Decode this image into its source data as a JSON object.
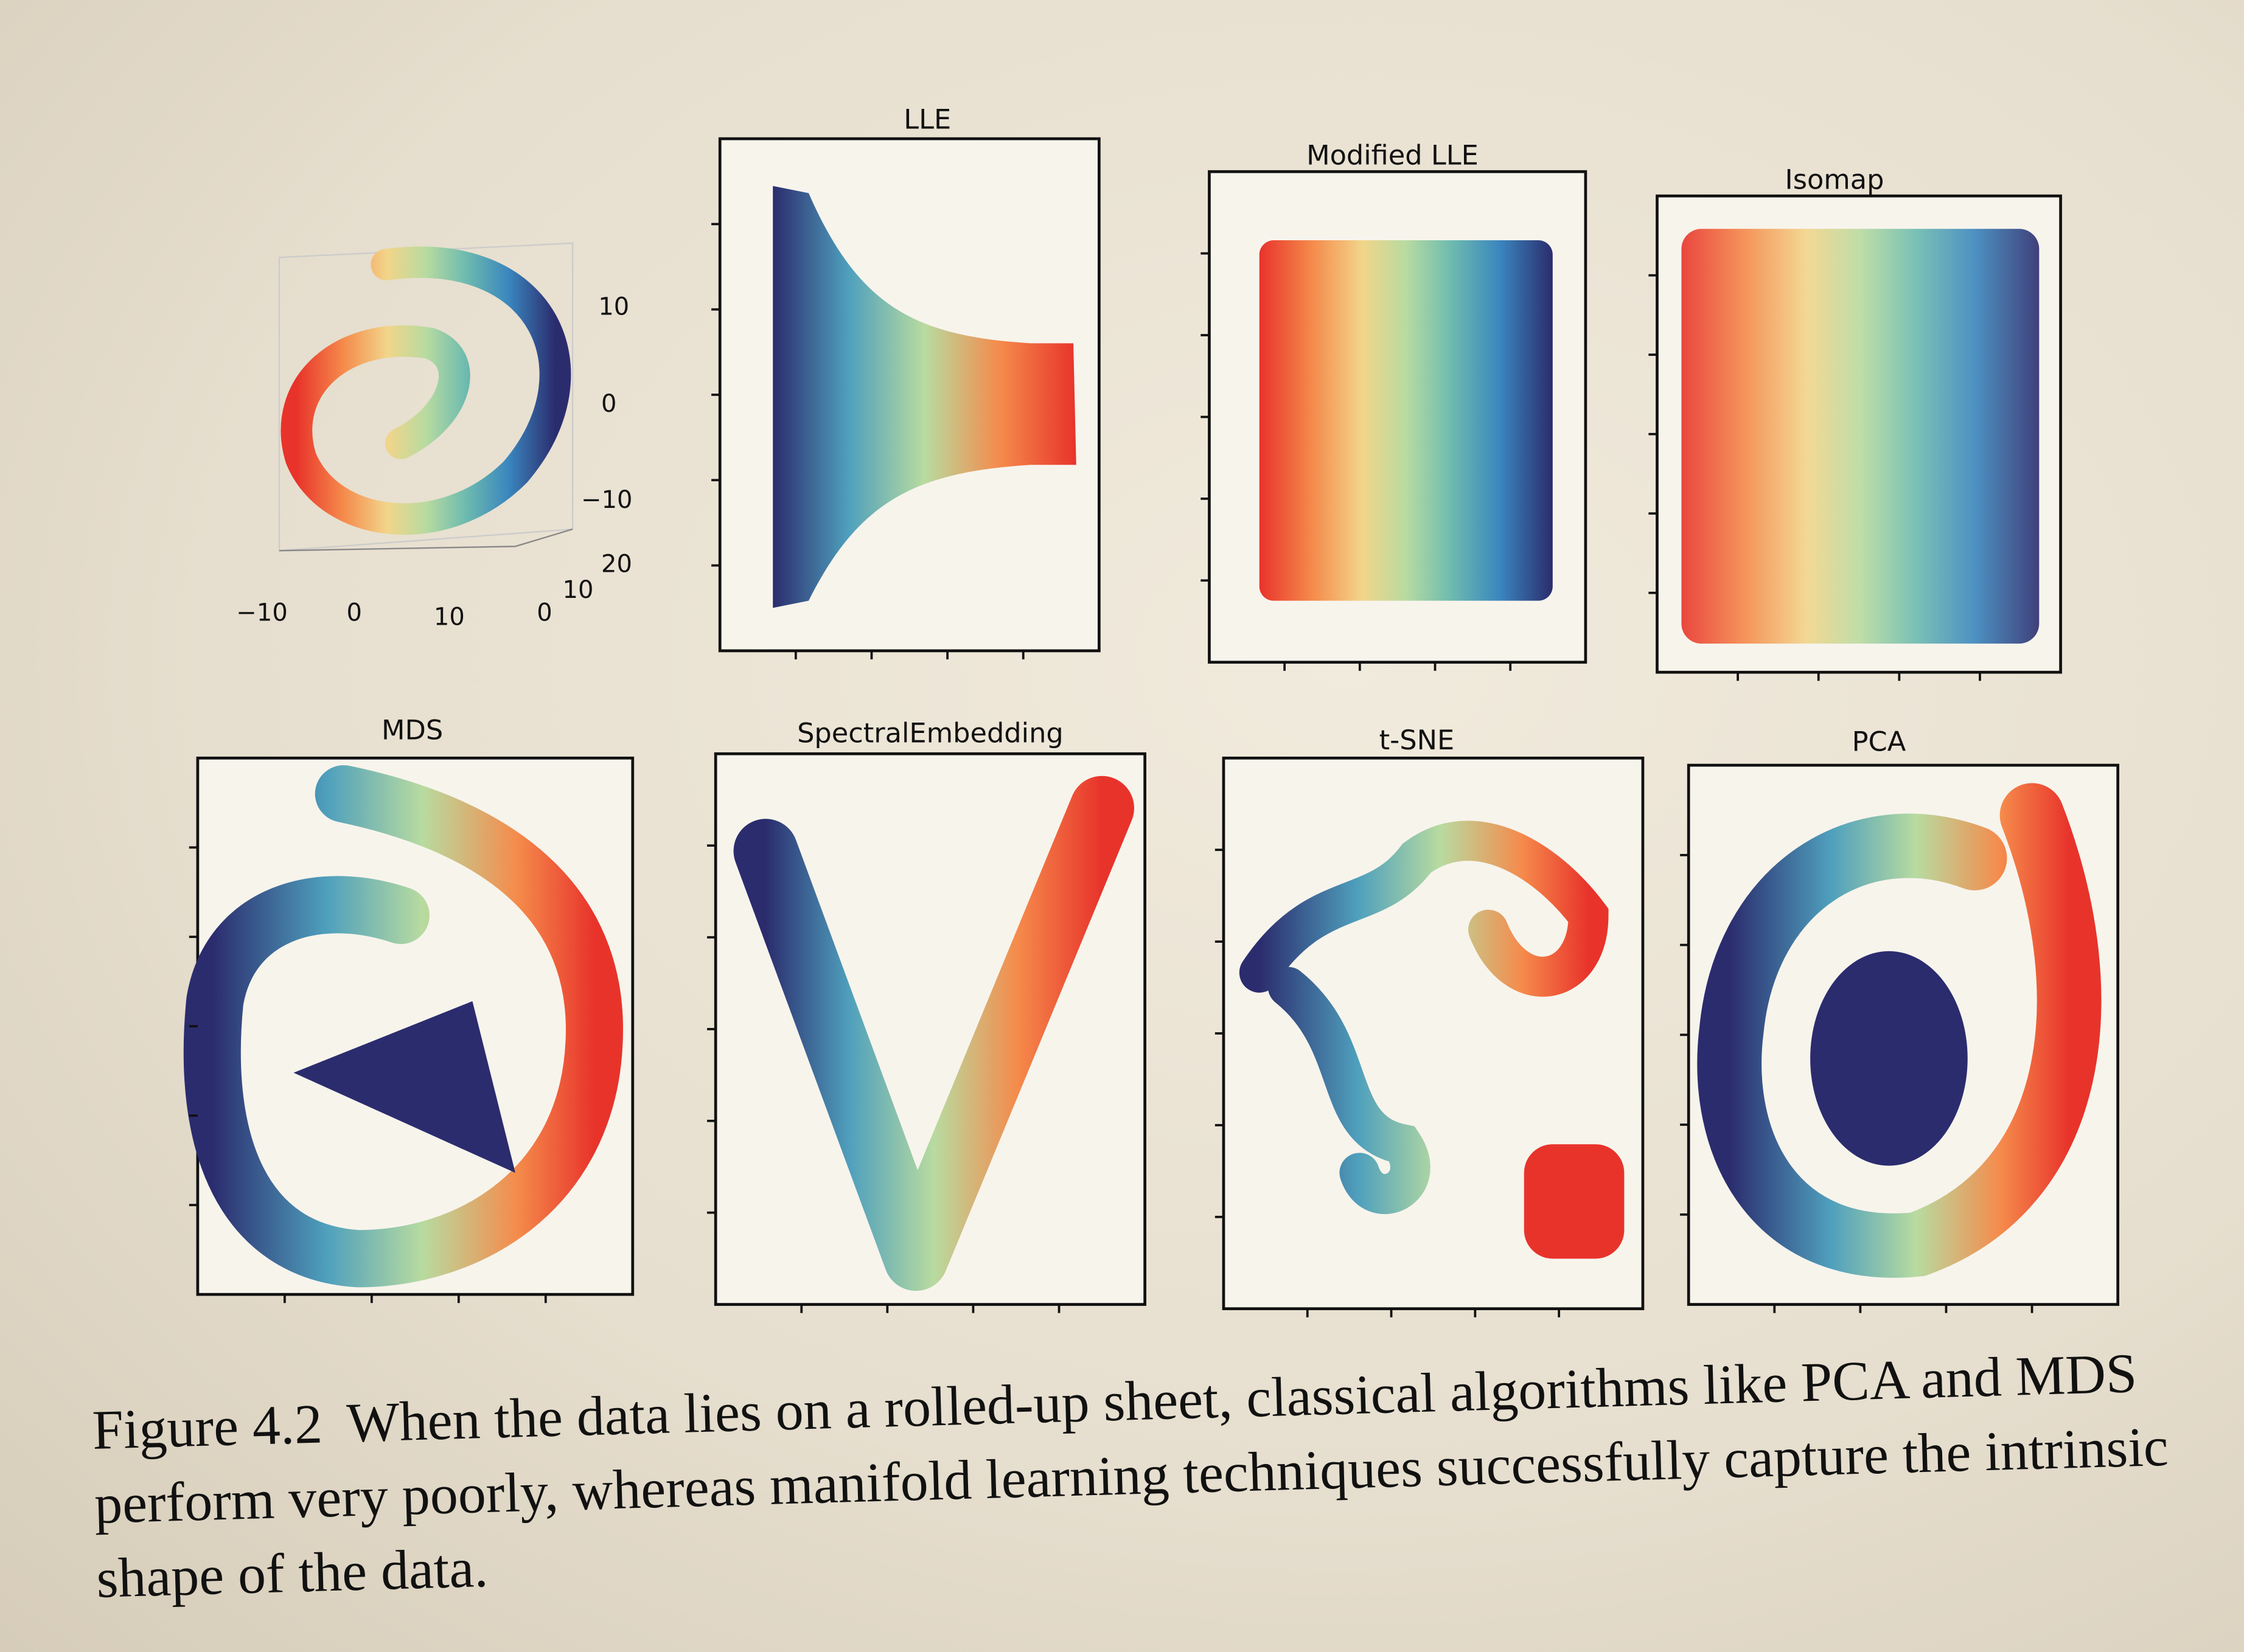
{
  "figure": {
    "panels": {
      "surface_3d": {
        "z_ticks": [
          "10",
          "0",
          "−10"
        ],
        "depth_ticks": [
          "20",
          "10",
          "0"
        ],
        "x_ticks": [
          "−10",
          "0",
          "10"
        ]
      },
      "titles": [
        "LLE",
        "Modified LLE",
        "Isomap",
        "MDS",
        "SpectralEmbedding",
        "t-SNE",
        "PCA"
      ]
    },
    "caption": {
      "label": "Figure 4.2",
      "text": "When the data lies on a rolled-up sheet, classical algorithms like PCA and MDS perform very poorly, whereas manifold learning techniques successfully capture the intrinsic shape of the data."
    }
  }
}
